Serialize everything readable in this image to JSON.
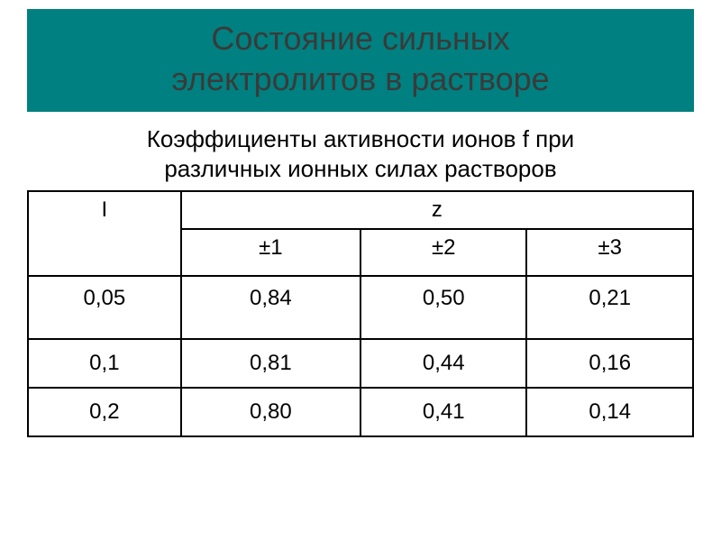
{
  "title": {
    "line1": "Состояние сильных",
    "line2": "электролитов в растворе",
    "bg_color": "#008080",
    "text_color": "#3a3a3a",
    "fontsize": 36
  },
  "subtitle": {
    "line1": "Коэффициенты активности ионов f при",
    "line2": "различных ионных силах растворов",
    "text_color": "#000000",
    "fontsize": 26
  },
  "table": {
    "type": "table",
    "border_color": "#000000",
    "border_width": 2,
    "cell_fontsize": 24,
    "background_color": "#ffffff",
    "header": {
      "I_label": "I",
      "z_label": "z",
      "z_sub": [
        "±1",
        "±2",
        "±3"
      ]
    },
    "column_widths_pct": [
      23,
      27,
      25,
      25
    ],
    "rows": [
      {
        "I": "0,05",
        "z1": "0,84",
        "z2": "0,50",
        "z3": "0,21"
      },
      {
        "I": "0,1",
        "z1": "0,81",
        "z2": "0,44",
        "z3": "0,16"
      },
      {
        "I": "0,2",
        "z1": "0,80",
        "z2": "0,41",
        "z3": "0,14"
      }
    ]
  }
}
